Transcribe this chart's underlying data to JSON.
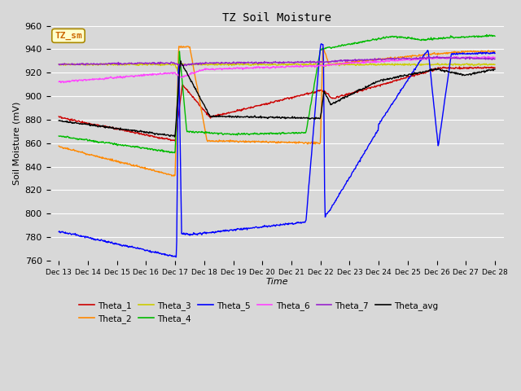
{
  "title": "TZ Soil Moisture",
  "xlabel": "Time",
  "ylabel": "Soil Moisture (mV)",
  "ylim": [
    760,
    960
  ],
  "background_color": "#d8d8d8",
  "grid_color": "#ffffff",
  "series_colors": {
    "Theta_1": "#cc0000",
    "Theta_2": "#ff8800",
    "Theta_3": "#cccc00",
    "Theta_4": "#00bb00",
    "Theta_5": "#0000ff",
    "Theta_6": "#ff44ff",
    "Theta_7": "#9922cc",
    "Theta_avg": "#000000"
  },
  "legend_box_label": "TZ_sm",
  "legend_box_color": "#cc6600",
  "legend_box_bg": "#ffffcc",
  "legend_box_edge": "#aa8800",
  "xtick_labels": [
    "Dec 13",
    "Dec 14",
    "Dec 15",
    "Dec 16",
    "Dec 17",
    "Dec 18",
    "Dec 19",
    "Dec 20",
    "Dec 21",
    "Dec 22",
    "Dec 23",
    "Dec 24",
    "Dec 25",
    "Dec 26",
    "Dec 27",
    "Dec 28"
  ],
  "ytick_labels": [
    "760",
    "780",
    "800",
    "820",
    "840",
    "860",
    "880",
    "900",
    "920",
    "940",
    "960"
  ],
  "ytick_values": [
    760,
    780,
    800,
    820,
    840,
    860,
    880,
    900,
    920,
    940,
    960
  ]
}
